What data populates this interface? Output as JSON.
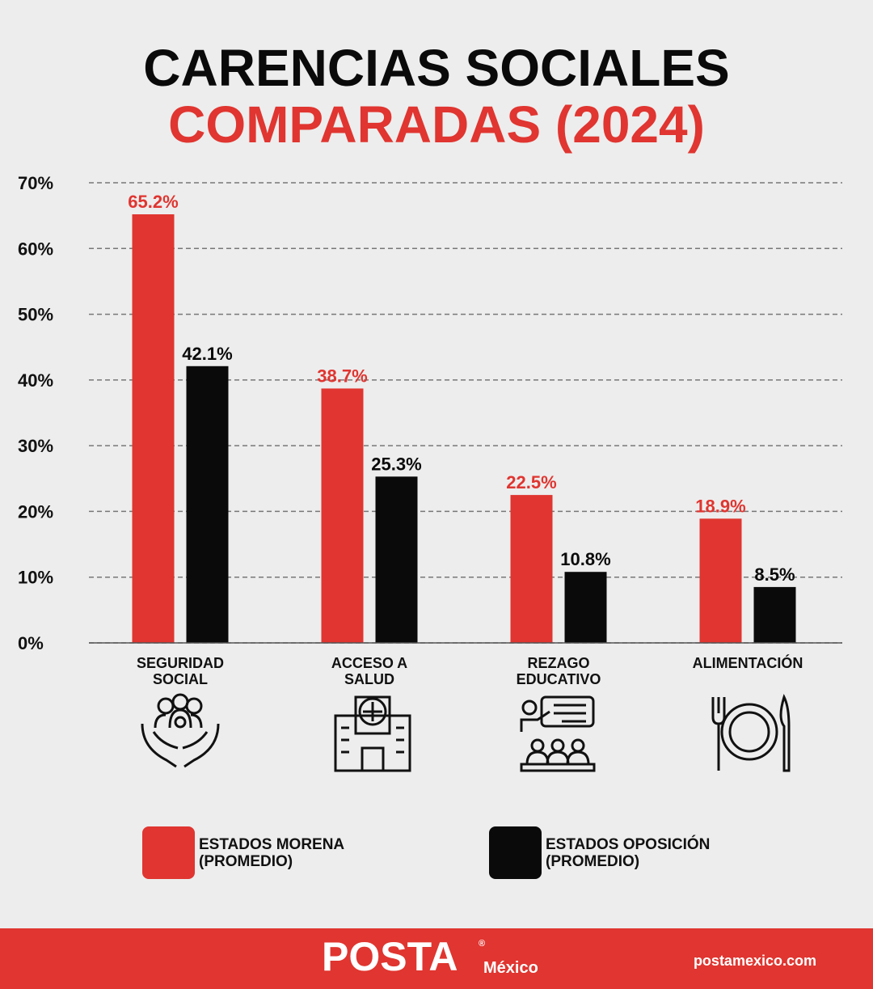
{
  "chart_data": {
    "type": "bar",
    "title": "CARENCIAS SOCIALES",
    "subtitle": "COMPARADAS (2024)",
    "categories": [
      "SEGURIDAD SOCIAL",
      "ACCESO A SALUD",
      "REZAGO EDUCATIVO",
      "ALIMENTACIÓN"
    ],
    "series": [
      {
        "name": "ESTADOS MORENA (PROMEDIO)",
        "color": "#e03530",
        "values": [
          65.2,
          38.7,
          22.5,
          18.9
        ],
        "value_labels": [
          "65.2%",
          "38.7%",
          "22.5%",
          "18.9%"
        ]
      },
      {
        "name": "ESTADOS OPOSICIÓN (PROMEDIO)",
        "color": "#0a0a0a",
        "values": [
          42.1,
          25.3,
          10.8,
          8.5
        ],
        "value_labels": [
          "42.1%",
          "25.3%",
          "10.8%",
          "8.5%"
        ]
      }
    ],
    "ylim": [
      0,
      70
    ],
    "yticks": [
      {
        "value": 0,
        "label": "0%"
      },
      {
        "value": 10,
        "label": "10%"
      },
      {
        "value": 20,
        "label": "20%"
      },
      {
        "value": 30,
        "label": "30%"
      },
      {
        "value": 40,
        "label": "40%"
      },
      {
        "value": 50,
        "label": "50%"
      },
      {
        "value": 60,
        "label": "60%"
      },
      {
        "value": 70,
        "label": "70%"
      }
    ],
    "grid": true
  },
  "footer": {
    "brand": "POSTA",
    "registered": "®",
    "brand_sub": "México",
    "website": "postamexico.com"
  }
}
